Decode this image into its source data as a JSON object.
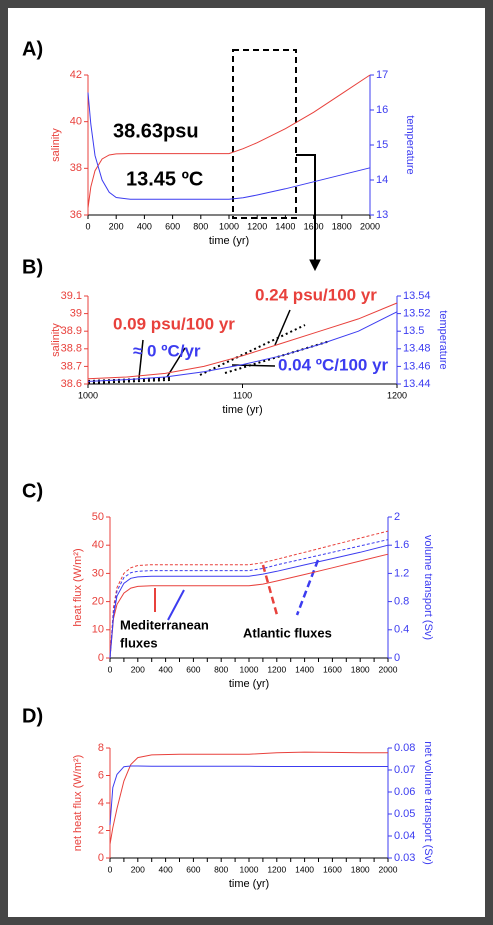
{
  "chart_data": [
    {
      "type": "line",
      "title": "A)",
      "xlabel": "time (yr)",
      "ylabel": "salinity",
      "y2label": "temperature",
      "ycolor": "#e8413c",
      "y2color": "#3c3cf0",
      "x": [
        0,
        20,
        50,
        100,
        150,
        200,
        300,
        400,
        600,
        800,
        1000,
        1100,
        1200,
        1400,
        1600,
        1800,
        2000
      ],
      "xlim": [
        0,
        2000
      ],
      "xticks": [
        0,
        200,
        400,
        600,
        800,
        1000,
        1200,
        1400,
        1600,
        1800,
        2000
      ],
      "ylim": [
        36,
        42
      ],
      "yticks": [
        36,
        38,
        40,
        42
      ],
      "y2lim": [
        13,
        17
      ],
      "y2ticks": [
        13,
        14,
        15,
        16,
        17
      ],
      "series": [
        {
          "color": "#e8413c",
          "values": [
            36.3,
            37.2,
            37.9,
            38.4,
            38.57,
            38.62,
            38.63,
            38.63,
            38.63,
            38.63,
            38.63,
            38.84,
            39.1,
            39.7,
            40.4,
            41.2,
            42.0
          ]
        },
        {
          "color": "#3c3cf0",
          "axis": "y2",
          "values": [
            16.5,
            15.6,
            14.7,
            14.0,
            13.65,
            13.5,
            13.45,
            13.45,
            13.45,
            13.45,
            13.45,
            13.49,
            13.57,
            13.75,
            13.95,
            14.15,
            14.35
          ]
        }
      ],
      "annotations": [
        {
          "text": "38.63psu",
          "color": "#000000"
        },
        {
          "text": "13.45 ºC",
          "color": "#000000"
        }
      ]
    },
    {
      "type": "line",
      "title": "B)",
      "xlabel": "time (yr)",
      "ylabel": "salinity",
      "y2label": "temperature",
      "ycolor": "#e8413c",
      "y2color": "#3c3cf0",
      "x": [
        1000,
        1025,
        1050,
        1075,
        1100,
        1125,
        1150,
        1175,
        1200
      ],
      "xlim": [
        1000,
        1200
      ],
      "xticks": [
        1000,
        1100,
        1200
      ],
      "ylim": [
        38.6,
        39.1
      ],
      "yticks": [
        38.6,
        38.7,
        38.8,
        38.9,
        39,
        39.1
      ],
      "y2lim": [
        13.44,
        13.54
      ],
      "y2ticks": [
        13.44,
        13.46,
        13.48,
        13.5,
        13.52,
        13.54
      ],
      "series": [
        {
          "color": "#e8413c",
          "values": [
            38.63,
            38.64,
            38.66,
            38.7,
            38.76,
            38.83,
            38.9,
            38.97,
            39.06
          ]
        },
        {
          "color": "#3c3cf0",
          "axis": "y2",
          "values": [
            13.443,
            13.445,
            13.448,
            13.454,
            13.462,
            13.472,
            13.485,
            13.5,
            13.522
          ]
        }
      ],
      "annotations": [
        {
          "text": "0.24 psu/100 yr",
          "color": "#e8413c"
        },
        {
          "text": "0.09 psu/100 yr",
          "color": "#e8413c"
        },
        {
          "text": "≈ 0 ºC/yr",
          "color": "#3c3cf0"
        },
        {
          "text": "0.04 ºC/100 yr",
          "color": "#3c3cf0"
        }
      ]
    },
    {
      "type": "line",
      "title": "C)",
      "xlabel": "time (yr)",
      "ylabel": "heat flux (W/m²)",
      "y2label": "volume transport (Sv)",
      "ycolor": "#e8413c",
      "y2color": "#3c3cf0",
      "x": [
        0,
        25,
        50,
        100,
        150,
        200,
        300,
        500,
        800,
        1000,
        1100,
        1200,
        1400,
        1600,
        1800,
        2000
      ],
      "xlim": [
        0,
        2000
      ],
      "xticks": [
        0,
        100,
        200,
        300,
        400,
        500,
        600,
        700,
        800,
        900,
        1000,
        1100,
        1200,
        1300,
        1400,
        1500,
        1600,
        1700,
        1800,
        1900,
        2000
      ],
      "ylim": [
        0,
        50
      ],
      "yticks": [
        0,
        10,
        20,
        30,
        40,
        50
      ],
      "y2lim": [
        0,
        2
      ],
      "y2ticks": [
        0,
        0.4,
        0.8,
        1.2,
        1.6,
        2
      ],
      "series": [
        {
          "color": "#e8413c",
          "values": [
            0,
            14,
            19,
            23,
            24.8,
            25.4,
            25.6,
            25.6,
            25.6,
            25.6,
            26.2,
            27.3,
            29.6,
            32.0,
            34.4,
            36.8
          ]
        },
        {
          "color": "#e8413c",
          "dash": true,
          "values": [
            0,
            18,
            25,
            30,
            32,
            32.8,
            33.1,
            33.1,
            33.1,
            33.1,
            33.8,
            35,
            37.5,
            40,
            42.5,
            45
          ]
        },
        {
          "color": "#3c3cf0",
          "axis": "y2",
          "values": [
            0,
            0.6,
            0.88,
            1.06,
            1.13,
            1.15,
            1.16,
            1.16,
            1.16,
            1.16,
            1.19,
            1.23,
            1.32,
            1.41,
            1.5,
            1.6
          ]
        },
        {
          "color": "#3c3cf0",
          "axis": "y2",
          "dash": true,
          "values": [
            0,
            0.65,
            0.95,
            1.14,
            1.21,
            1.23,
            1.24,
            1.24,
            1.24,
            1.24,
            1.27,
            1.32,
            1.41,
            1.5,
            1.59,
            1.68
          ]
        }
      ],
      "annotations": [
        {
          "text": "Mediterranean",
          "color": "#000000"
        },
        {
          "text": "fluxes",
          "color": "#000000"
        },
        {
          "text": "Atlantic fluxes",
          "color": "#000000"
        }
      ]
    },
    {
      "type": "line",
      "title": "D)",
      "xlabel": "time (yr)",
      "ylabel": "net heat flux (W/m²)",
      "y2label": "net volume transport (Sv)",
      "ycolor": "#e8413c",
      "y2color": "#3c3cf0",
      "x": [
        0,
        20,
        50,
        100,
        150,
        200,
        300,
        500,
        800,
        1000,
        1200,
        1400,
        1600,
        1800,
        2000
      ],
      "xlim": [
        0,
        2000
      ],
      "xticks": [
        0,
        100,
        200,
        300,
        400,
        500,
        600,
        700,
        800,
        900,
        1000,
        1100,
        1200,
        1300,
        1400,
        1500,
        1600,
        1700,
        1800,
        1900,
        2000
      ],
      "ylim": [
        0,
        8
      ],
      "yticks": [
        0,
        2,
        4,
        6,
        8
      ],
      "y2lim": [
        0.03,
        0.08
      ],
      "y2ticks": [
        0.03,
        0.04,
        0.05,
        0.06,
        0.07,
        0.08
      ],
      "series": [
        {
          "color": "#e8413c",
          "values": [
            1,
            2.2,
            3.6,
            5.6,
            6.8,
            7.3,
            7.5,
            7.55,
            7.55,
            7.55,
            7.65,
            7.7,
            7.68,
            7.66,
            7.65
          ]
        },
        {
          "color": "#3c3cf0",
          "axis": "y2",
          "values": [
            0.045,
            0.062,
            0.068,
            0.0715,
            0.0718,
            0.0718,
            0.0717,
            0.0717,
            0.0717,
            0.0717,
            0.0716,
            0.0716,
            0.0716,
            0.0716,
            0.0716
          ]
        }
      ],
      "annotations": []
    }
  ]
}
